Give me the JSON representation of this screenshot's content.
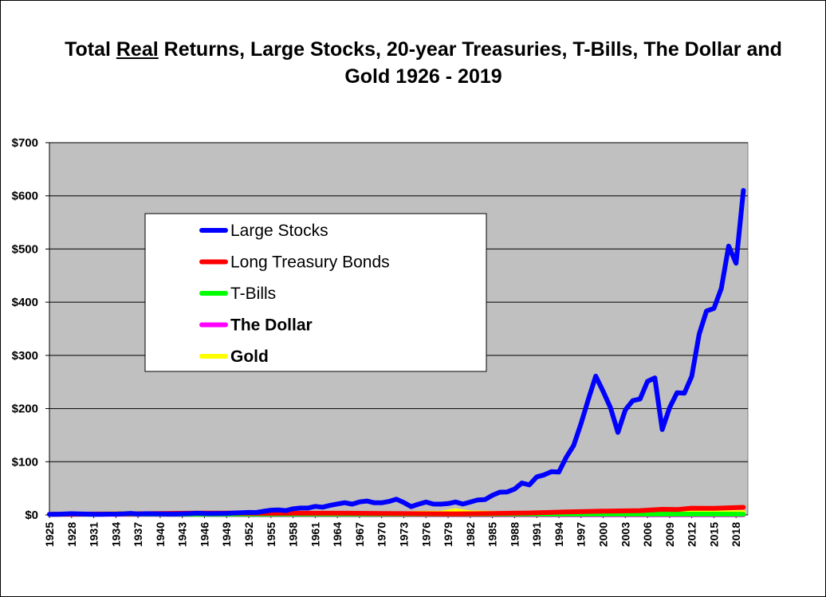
{
  "chart_data": {
    "type": "line",
    "title": {
      "part1": "Total ",
      "underlined": "Real",
      "part2": " Returns, Large Stocks, 20-year Treasuries, T-Bills, The Dollar and Gold 1926 - 2019"
    },
    "ylim": [
      0,
      700
    ],
    "y_ticks": [
      "$0",
      "$100",
      "$200",
      "$300",
      "$400",
      "$500",
      "$600",
      "$700"
    ],
    "x_range": [
      1925,
      2019
    ],
    "x_ticks": [
      "1925",
      "1928",
      "1931",
      "1934",
      "1937",
      "1940",
      "1943",
      "1946",
      "1949",
      "1952",
      "1955",
      "1958",
      "1961",
      "1964",
      "1967",
      "1970",
      "1973",
      "1976",
      "1979",
      "1982",
      "1985",
      "1988",
      "1991",
      "1994",
      "1997",
      "2000",
      "2003",
      "2006",
      "2009",
      "2012",
      "2015",
      "2018"
    ],
    "grid": "horizontal",
    "legend_position": "upper-left",
    "series": [
      {
        "name": "Large Stocks",
        "color": "#0000ff",
        "bold_label": false,
        "x": [
          1925,
          1926,
          1927,
          1928,
          1929,
          1930,
          1931,
          1932,
          1933,
          1934,
          1935,
          1936,
          1937,
          1938,
          1939,
          1940,
          1941,
          1942,
          1943,
          1944,
          1945,
          1946,
          1947,
          1948,
          1949,
          1950,
          1951,
          1952,
          1953,
          1954,
          1955,
          1956,
          1957,
          1958,
          1959,
          1960,
          1961,
          1962,
          1963,
          1964,
          1965,
          1966,
          1967,
          1968,
          1969,
          1970,
          1971,
          1972,
          1973,
          1974,
          1975,
          1976,
          1977,
          1978,
          1979,
          1980,
          1981,
          1982,
          1983,
          1984,
          1985,
          1986,
          1987,
          1988,
          1989,
          1990,
          1991,
          1992,
          1993,
          1994,
          1995,
          1996,
          1997,
          1998,
          1999,
          2000,
          2001,
          2002,
          2003,
          2004,
          2005,
          2006,
          2007,
          2008,
          2009,
          2010,
          2011,
          2012,
          2013,
          2014,
          2015,
          2016,
          2017,
          2018,
          2019
        ],
        "values": [
          1,
          1.1,
          1.6,
          2.2,
          2,
          1.5,
          1,
          1,
          1.5,
          1.5,
          2.1,
          2.8,
          1.7,
          2.2,
          2.1,
          1.9,
          1.6,
          1.7,
          2.1,
          2.4,
          3.1,
          2.5,
          2.4,
          2.5,
          2.9,
          3.6,
          4,
          4.6,
          4.5,
          6.8,
          8.9,
          9.3,
          8.1,
          11.6,
          12.9,
          12.9,
          16.1,
          14.6,
          17.8,
          20.6,
          23,
          20.3,
          24.4,
          26.1,
          22.8,
          22.8,
          25.4,
          29.6,
          23.2,
          15.6,
          20.2,
          24.1,
          20.4,
          20.3,
          21.3,
          24.3,
          20.4,
          24.1,
          28.2,
          28.8,
          36.8,
          42.7,
          43.2,
          48.5,
          60,
          56.3,
          71.5,
          75.2,
          81.3,
          80.5,
          108.3,
          130.6,
          171.7,
          217.7,
          260.9,
          232.2,
          201.2,
          155.1,
          197.4,
          214.8,
          218,
          251.1,
          257.6,
          160.6,
          201.4,
          229.6,
          229.1,
          260.7,
          339.8,
          383.4,
          388.2,
          426,
          505.6,
          473.4,
          610.2
        ]
      },
      {
        "name": "Long Treasury Bonds",
        "color": "#ff0000",
        "bold_label": false,
        "x": [
          1925,
          1935,
          1940,
          1945,
          1950,
          1955,
          1960,
          1965,
          1970,
          1975,
          1980,
          1985,
          1990,
          1995,
          2000,
          2005,
          2008,
          2010,
          2012,
          2015,
          2019
        ],
        "values": [
          1,
          2,
          2.5,
          3.5,
          3.4,
          3,
          3.1,
          3.1,
          2.6,
          2.3,
          1.9,
          2.6,
          3.6,
          5.6,
          7.1,
          8.1,
          10.5,
          10,
          12.6,
          12.3,
          14.2
        ]
      },
      {
        "name": "T-Bills",
        "color": "#00ff00",
        "bold_label": false,
        "x": [
          1925,
          1935,
          1945,
          1955,
          1965,
          1975,
          1980,
          1990,
          2000,
          2010,
          2019
        ],
        "values": [
          1,
          1.5,
          1.1,
          1,
          1.1,
          1.1,
          1.1,
          1.3,
          1.5,
          1.5,
          1.4
        ]
      },
      {
        "name": "The Dollar",
        "color": "#ff00ff",
        "bold_label": true,
        "x": [
          1925,
          1935,
          1945,
          1955,
          1965,
          1975,
          1985,
          1995,
          2005,
          2019
        ],
        "values": [
          1,
          1.2,
          0.7,
          0.5,
          0.4,
          0.3,
          0.15,
          0.1,
          0.1,
          0.08
        ]
      },
      {
        "name": "Gold",
        "color": "#ffff00",
        "bold_label": true,
        "x": [
          1925,
          1930,
          1935,
          1940,
          1945,
          1950,
          1955,
          1960,
          1965,
          1970,
          1975,
          1978,
          1980,
          1982,
          1985,
          1990,
          1995,
          2000,
          2005,
          2008,
          2011,
          2012,
          2015,
          2019
        ],
        "values": [
          1,
          1.2,
          2.5,
          2,
          1.5,
          1.2,
          1,
          0.9,
          0.8,
          0.8,
          3,
          3.5,
          8,
          4,
          3,
          2.2,
          1.8,
          1.2,
          1.6,
          3.5,
          5,
          5,
          3.5,
          4.5
        ]
      }
    ]
  }
}
